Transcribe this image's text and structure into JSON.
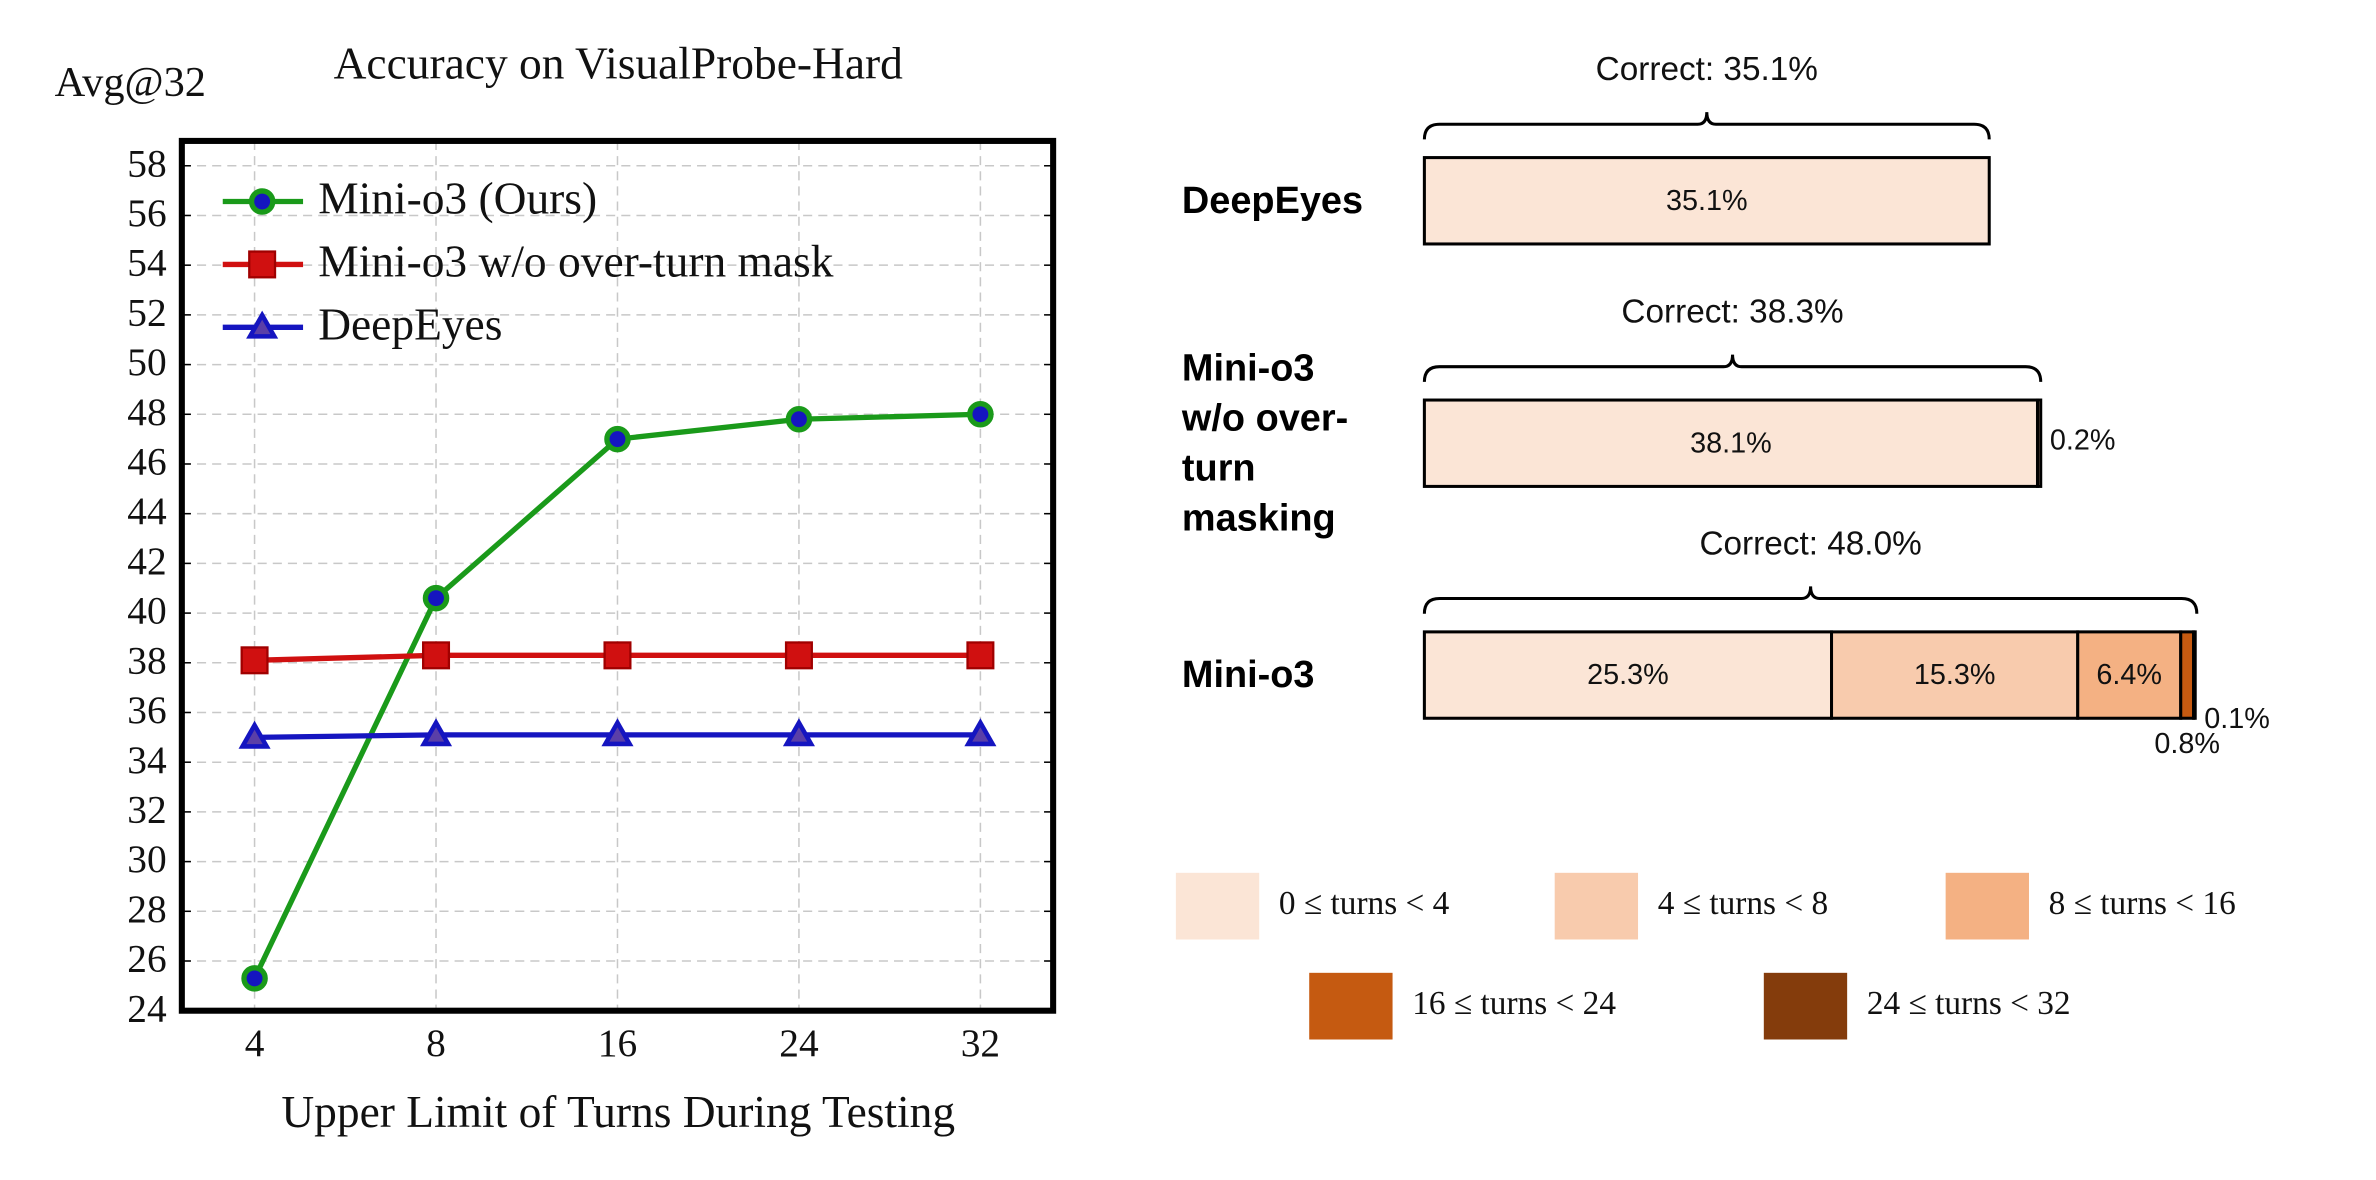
{
  "chart_data": [
    {
      "type": "line",
      "title": "Accuracy on VisualProbe-Hard",
      "y_label": "Avg@32",
      "x_label": "Upper Limit of Turns During Testing",
      "categories": [
        "4",
        "8",
        "16",
        "24",
        "32"
      ],
      "ylim": [
        24,
        59
      ],
      "yticks": [
        24,
        26,
        28,
        30,
        32,
        34,
        36,
        38,
        40,
        42,
        44,
        46,
        48,
        50,
        52,
        54,
        56,
        58
      ],
      "grid": true,
      "legend": "upper-left",
      "series": [
        {
          "name": "Mini-o3 (Ours)",
          "color": "#1a9a1a",
          "marker": "circle",
          "values": [
            25.3,
            40.6,
            47.0,
            47.8,
            48.0
          ]
        },
        {
          "name": "Mini-o3 w/o over-turn mask",
          "color": "#d01010",
          "marker": "square",
          "values": [
            38.1,
            38.3,
            38.3,
            38.3,
            38.3
          ]
        },
        {
          "name": "DeepEyes",
          "color": "#1515c0",
          "marker": "triangle",
          "values": [
            35.0,
            35.1,
            35.1,
            35.1,
            35.1
          ]
        }
      ]
    },
    {
      "type": "stacked-bar",
      "orientation": "horizontal",
      "categories": [
        "DeepEyes",
        "Mini-o3 w/o over-turn masking",
        "Mini-o3"
      ],
      "totals": [
        35.1,
        38.3,
        48.0
      ],
      "total_labels": [
        "Correct: 35.1%",
        "Correct: 38.3%",
        "Correct: 48.0%"
      ],
      "series": [
        {
          "name": "0 ≤ turns < 4",
          "color": "#fbe5d6",
          "values": [
            35.1,
            38.1,
            25.3
          ],
          "value_labels": [
            "35.1%",
            "38.1%",
            "25.3%"
          ]
        },
        {
          "name": "4 ≤ turns < 8",
          "color": "#f8cbad",
          "values": [
            null,
            0.2,
            15.3
          ],
          "value_labels": [
            null,
            "0.2%",
            "15.3%"
          ]
        },
        {
          "name": "8 ≤ turns < 16",
          "color": "#f4b183",
          "values": [
            null,
            null,
            6.4
          ],
          "value_labels": [
            null,
            null,
            "6.4%"
          ]
        },
        {
          "name": "16 ≤ turns < 24",
          "color": "#c55a11",
          "values": [
            null,
            null,
            0.8
          ],
          "value_labels": [
            null,
            null,
            "0.8%"
          ]
        },
        {
          "name": "24 ≤ turns < 32",
          "color": "#843c0c",
          "values": [
            null,
            null,
            0.1
          ],
          "value_labels": [
            null,
            null,
            "0.1%"
          ]
        }
      ]
    }
  ]
}
